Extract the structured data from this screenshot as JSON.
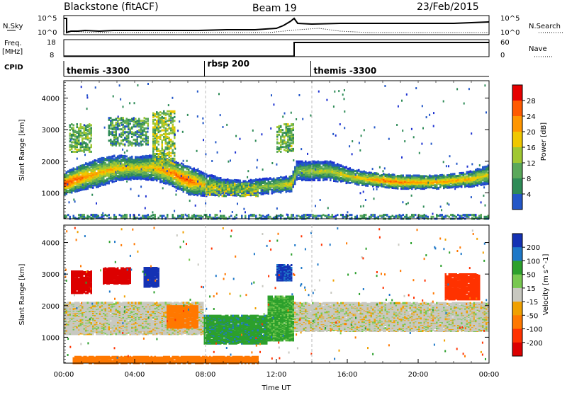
{
  "header": {
    "station": "Blackstone (fitACF)",
    "beam": "Beam 19",
    "date": "23/Feb/2015"
  },
  "noise_panel": {
    "left_label": "N.Sky",
    "left_top": "10^5",
    "left_bottom": "10^0",
    "right_label": "N.Search",
    "right_top": "10^5",
    "right_bottom": "10^0"
  },
  "freq_panel": {
    "left_label_1": "Freq.",
    "left_label_2": "[MHz]",
    "left_top": "18",
    "left_bottom": "8",
    "right_label": "Nave",
    "right_top": "60",
    "right_bottom": "0",
    "series": [
      {
        "x": [
          0,
          13.0,
          13.0,
          24
        ],
        "y": [
          8.3,
          8.3,
          18,
          18
        ]
      }
    ]
  },
  "cpid_panel": {
    "label": "CPID",
    "segments": [
      {
        "label": "themis -3300",
        "start": 0.0,
        "end": 7.9
      },
      {
        "label": "rbsp 200",
        "start": 7.9,
        "end": 13.9
      },
      {
        "label": "themis -3300",
        "start": 13.9,
        "end": 24.0
      }
    ]
  },
  "chart_data": [
    {
      "type": "heatmap",
      "name": "power",
      "xlabel": "",
      "ylabel": "Slant Range [km]",
      "colorbar_label": "Power [dB]",
      "xlim": [
        0,
        24
      ],
      "ylim": [
        180,
        4550
      ],
      "yticks": [
        1000,
        2000,
        3000,
        4000
      ],
      "colorbar_ticks": [
        "28",
        "24",
        "20",
        "16",
        "12",
        "8",
        "4"
      ],
      "bands": [
        {
          "x": [
            0,
            1,
            2,
            3,
            4,
            5,
            6,
            7,
            8,
            9,
            10,
            11,
            12,
            12.8,
            13.1,
            14,
            15,
            16,
            17,
            18,
            19,
            20,
            21,
            22,
            23,
            24
          ],
          "range": [
            1300,
            1500,
            1650,
            1800,
            1800,
            1800,
            1650,
            1400,
            1250,
            1200,
            1150,
            1200,
            1250,
            1300,
            1700,
            1700,
            1700,
            1550,
            1450,
            1400,
            1350,
            1350,
            1350,
            1400,
            1450,
            1600
          ],
          "width": [
            350,
            400,
            450,
            400,
            350,
            400,
            400,
            450,
            350,
            250,
            250,
            250,
            250,
            250,
            300,
            300,
            300,
            250,
            220,
            220,
            220,
            220,
            220,
            220,
            250,
            300
          ],
          "peak": [
            28,
            24,
            20,
            20,
            18,
            20,
            24,
            26,
            18,
            14,
            12,
            14,
            16,
            20,
            14,
            16,
            16,
            18,
            20,
            24,
            24,
            22,
            22,
            22,
            20,
            18
          ]
        }
      ],
      "extra_patches": [
        {
          "x0": 0.3,
          "x1": 1.6,
          "r0": 2300,
          "r1": 3200,
          "level": 12
        },
        {
          "x0": 2.5,
          "x1": 4.8,
          "r0": 2500,
          "r1": 3400,
          "level": 10
        },
        {
          "x0": 5.0,
          "x1": 6.2,
          "r0": 1900,
          "r1": 3600,
          "level": 14
        },
        {
          "x0": 8.0,
          "x1": 11.0,
          "r0": 900,
          "r1": 1300,
          "level": 14
        },
        {
          "x0": 12.0,
          "x1": 13.0,
          "r0": 2300,
          "r1": 3200,
          "level": 12
        },
        {
          "x0": 0,
          "x1": 24,
          "r0": 180,
          "r1": 320,
          "level": 8
        }
      ]
    },
    {
      "type": "heatmap",
      "name": "velocity",
      "xlabel": "Time UT",
      "ylabel": "Slant Range [km]",
      "colorbar_label": "Velocity [m s^-1]",
      "xlim": [
        0,
        24
      ],
      "ylim": [
        180,
        4550
      ],
      "yticks": [
        1000,
        2000,
        3000,
        4000
      ],
      "xticks": [
        "00:00",
        "04:00",
        "08:00",
        "12:00",
        "16:00",
        "20:00",
        "00:00"
      ],
      "colorbar_ticks": [
        "200",
        "100",
        "50",
        "15",
        "-15",
        "-50",
        "-100",
        "-200"
      ],
      "patches": [
        {
          "x0": 0.0,
          "x1": 7.9,
          "r0": 1100,
          "r1": 2100,
          "v": 0
        },
        {
          "x0": 5.8,
          "x1": 7.6,
          "r0": 1300,
          "r1": 2000,
          "v": -70
        },
        {
          "x0": 7.9,
          "x1": 11.5,
          "r0": 800,
          "r1": 1700,
          "v": 60
        },
        {
          "x0": 11.5,
          "x1": 13.0,
          "r0": 900,
          "r1": 2300,
          "v": 40
        },
        {
          "x0": 13.0,
          "x1": 24.0,
          "r0": 1200,
          "r1": 2100,
          "v": 0
        },
        {
          "x0": 0.4,
          "x1": 1.6,
          "r0": 2400,
          "r1": 3100,
          "v": -220
        },
        {
          "x0": 2.2,
          "x1": 3.8,
          "r0": 2700,
          "r1": 3200,
          "v": -220
        },
        {
          "x0": 4.5,
          "x1": 5.4,
          "r0": 2600,
          "r1": 3200,
          "v": 180
        },
        {
          "x0": 12.0,
          "x1": 12.9,
          "r0": 2800,
          "r1": 3300,
          "v": 160
        },
        {
          "x0": 21.5,
          "x1": 23.5,
          "r0": 2200,
          "r1": 3000,
          "v": -150
        },
        {
          "x0": 0.5,
          "x1": 11.0,
          "r0": 180,
          "r1": 400,
          "v": -70
        }
      ]
    }
  ]
}
